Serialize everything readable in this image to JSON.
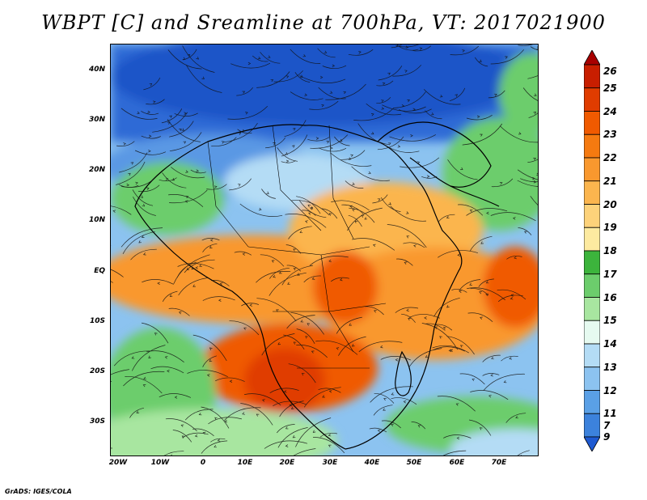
{
  "title": "WBPT [C] and Sreamline at 700hPa, VT: 2017021900",
  "latitude_labels": [
    "40N",
    "30N",
    "20N",
    "10N",
    "EQ",
    "10S",
    "20S",
    "30S"
  ],
  "longitude_labels": [
    "20W",
    "10W",
    "0",
    "10E",
    "20E",
    "30E",
    "40E",
    "50E",
    "60E",
    "70E"
  ],
  "colorbar": {
    "levels": [
      "26",
      "25",
      "24",
      "23",
      "22",
      "21",
      "20",
      "19",
      "18",
      "17",
      "16",
      "15",
      "14",
      "13",
      "12",
      "11",
      "9",
      "7"
    ],
    "colors": [
      "#a80000",
      "#c81e00",
      "#e03c00",
      "#f05a00",
      "#f57a10",
      "#f9982e",
      "#fbb54e",
      "#fdd27a",
      "#fdeaa0",
      "#3cb43c",
      "#6ccd6c",
      "#a8e6a0",
      "#e6faf0",
      "#b4dcf5",
      "#8cc3f0",
      "#5aa0e6",
      "#3c82dc",
      "#1e5ad2"
    ]
  },
  "footer": "GrADS: IGES/COLA"
}
